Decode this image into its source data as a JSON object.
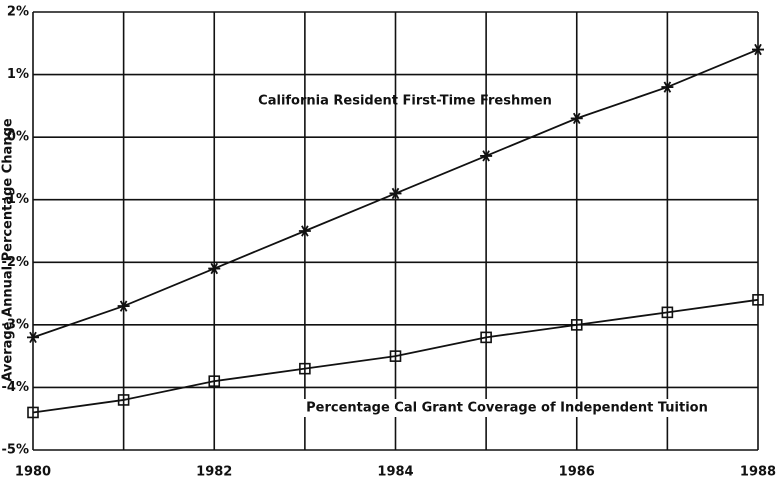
{
  "chart_data": {
    "type": "line",
    "y_label": "Average Annual Percentage Change",
    "x": [
      1980,
      1981,
      1982,
      1983,
      1984,
      1985,
      1986,
      1987,
      1988
    ],
    "series": [
      {
        "name": "California Resident First-Time Freshmen",
        "color": "#111111",
        "marker": "star",
        "values": [
          -3.2,
          -2.7,
          -2.1,
          -1.5,
          -0.9,
          -0.3,
          0.3,
          0.8,
          1.4
        ]
      },
      {
        "name": "Percentage Cal Grant Coverage of Independent Tuition",
        "color": "#111111",
        "marker": "square",
        "values": [
          -4.4,
          -4.2,
          -3.9,
          -3.7,
          -3.5,
          -3.2,
          -3.0,
          -2.8,
          -2.6
        ]
      }
    ],
    "xlim": [
      1980,
      1988
    ],
    "xticks": [
      1980,
      1982,
      1984,
      1986,
      1988
    ],
    "ylim": [
      -5,
      2
    ],
    "yticks": [
      {
        "value": 2,
        "label": "2%"
      },
      {
        "value": 1,
        "label": "1%"
      },
      {
        "value": 0,
        "label": "0%"
      },
      {
        "value": -1,
        "label": "-1%"
      },
      {
        "value": -2,
        "label": "-2%"
      },
      {
        "value": -3,
        "label": "-3%"
      },
      {
        "value": -4,
        "label": "-4%"
      },
      {
        "value": -5,
        "label": "-5%"
      }
    ],
    "grid": true
  }
}
